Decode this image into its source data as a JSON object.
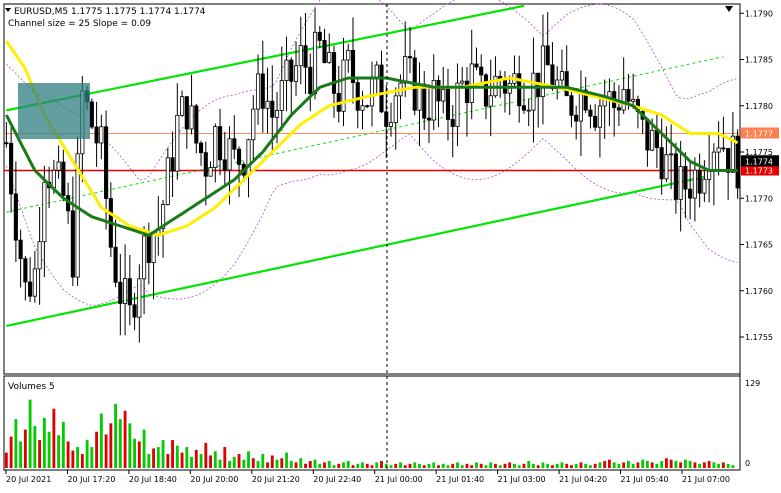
{
  "header": {
    "symbol_line": "EURUSD,M5  1.1775 1.1775 1.1774 1.1774",
    "indicator_line": "Channel size = 25 Slope = 0.09",
    "volume_label": "Volumes 5"
  },
  "colors": {
    "background": "#ffffff",
    "grid_dash": "#000000",
    "channel": "#00e600",
    "ma_fast": "#1a7a1a",
    "ma_slow": "#ffee00",
    "bands": "#b04fd0",
    "hline_red": "#e60000",
    "hline_orange": "#ff8c5a",
    "volume_up": "#00cc00",
    "volume_down": "#dd0000",
    "highlight_box": "#2f7f80",
    "price_tag_red": "#e60000",
    "price_tag_orange": "#ff7f50"
  },
  "chart_data": {
    "type": "candlestick",
    "symbol": "EURUSD",
    "timeframe": "M5",
    "price_axis": {
      "range": [
        1.1751,
        1.1791
      ],
      "ticks": [
        "1.1790",
        "1.1785",
        "1.1780",
        "1.1775",
        "1.1770",
        "1.1765",
        "1.1760",
        "1.1755"
      ]
    },
    "volume_axis": {
      "range": [
        0,
        129
      ],
      "ticks": [
        "129",
        "0"
      ]
    },
    "time_labels": [
      "20 Jul 2021",
      "20 Jul 17:20",
      "20 Jul 18:40",
      "20 Jul 20:00",
      "20 Jul 21:20",
      "20 Jul 22:40",
      "21 Jul 00:00",
      "21 Jul 01:40",
      "21 Jul 03:00",
      "21 Jul 04:20",
      "21 Jul 05:40",
      "21 Jul 07:00"
    ],
    "horizontal_lines": [
      {
        "price": 1.1777,
        "label": "1.1777",
        "color": "orange"
      },
      {
        "price": 1.1773,
        "label": "1.1773",
        "color": "red"
      }
    ],
    "current_price_label": "1.1774",
    "channel": {
      "upper_start": {
        "bar": 0,
        "price": 1.17795
      },
      "upper_end": {
        "bar": 109,
        "price": 1.17908
      },
      "lower_start": {
        "bar": 0,
        "price": 1.17562
      },
      "lower_end": {
        "bar": 147,
        "price": 1.17723
      },
      "mid_start": {
        "bar": 0,
        "price": 1.17685
      },
      "mid_end": {
        "bar": 151,
        "price": 1.17853
      }
    },
    "candles_description": "approx. 150 five-minute bars from 20 Jul 16:00 to 21 Jul 07:00",
    "close_path": [
      [
        0,
        1.1776
      ],
      [
        2,
        1.1768
      ],
      [
        4,
        1.176
      ],
      [
        6,
        1.1762
      ],
      [
        8,
        1.1774
      ],
      [
        10,
        1.1772
      ],
      [
        12,
        1.177
      ],
      [
        14,
        1.1764
      ],
      [
        16,
        1.1781
      ],
      [
        18,
        1.1778
      ],
      [
        20,
        1.1775
      ],
      [
        22,
        1.1765
      ],
      [
        24,
        1.176
      ],
      [
        26,
        1.1757
      ],
      [
        28,
        1.1763
      ],
      [
        30,
        1.1766
      ],
      [
        32,
        1.1767
      ],
      [
        34,
        1.1772
      ],
      [
        36,
        1.1778
      ],
      [
        38,
        1.178
      ],
      [
        40,
        1.1776
      ],
      [
        42,
        1.1774
      ],
      [
        44,
        1.1777
      ],
      [
        46,
        1.1776
      ],
      [
        48,
        1.1774
      ],
      [
        50,
        1.1775
      ],
      [
        52,
        1.178
      ],
      [
        54,
        1.1782
      ],
      [
        56,
        1.1779
      ],
      [
        58,
        1.1781
      ],
      [
        60,
        1.1783
      ],
      [
        62,
        1.1785
      ],
      [
        64,
        1.1784
      ],
      [
        66,
        1.1786
      ],
      [
        68,
        1.1783
      ],
      [
        70,
        1.1781
      ],
      [
        72,
        1.1784
      ],
      [
        74,
        1.1782
      ],
      [
        76,
        1.1781
      ],
      [
        78,
        1.1782
      ],
      [
        80,
        1.178
      ],
      [
        82,
        1.1782
      ],
      [
        84,
        1.1783
      ],
      [
        86,
        1.1782
      ],
      [
        88,
        1.178
      ],
      [
        90,
        1.1781
      ],
      [
        92,
        1.1779
      ],
      [
        94,
        1.178
      ],
      [
        96,
        1.1782
      ],
      [
        98,
        1.1783
      ],
      [
        100,
        1.1781
      ],
      [
        102,
        1.1782
      ],
      [
        104,
        1.1783
      ],
      [
        106,
        1.1782
      ],
      [
        108,
        1.1783
      ],
      [
        110,
        1.1782
      ],
      [
        112,
        1.1783
      ],
      [
        114,
        1.1784
      ],
      [
        116,
        1.1782
      ],
      [
        118,
        1.178
      ],
      [
        120,
        1.1781
      ],
      [
        122,
        1.1782
      ],
      [
        124,
        1.178
      ],
      [
        126,
        1.1781
      ],
      [
        128,
        1.178
      ],
      [
        130,
        1.1782
      ],
      [
        132,
        1.1779
      ],
      [
        134,
        1.1777
      ],
      [
        136,
        1.1776
      ],
      [
        138,
        1.1775
      ],
      [
        140,
        1.1772
      ],
      [
        142,
        1.1771
      ],
      [
        144,
        1.1772
      ],
      [
        146,
        1.1773
      ],
      [
        148,
        1.1776
      ],
      [
        150,
        1.1777
      ],
      [
        152,
        1.1775
      ],
      [
        154,
        1.1774
      ]
    ],
    "ma_fast_path": [
      [
        0,
        1.1779
      ],
      [
        6,
        1.1773
      ],
      [
        12,
        1.177
      ],
      [
        18,
        1.1768
      ],
      [
        24,
        1.1767
      ],
      [
        30,
        1.1766
      ],
      [
        36,
        1.1768
      ],
      [
        42,
        1.177
      ],
      [
        48,
        1.1772
      ],
      [
        54,
        1.1775
      ],
      [
        60,
        1.1779
      ],
      [
        66,
        1.1782
      ],
      [
        72,
        1.1783
      ],
      [
        80,
        1.1783
      ],
      [
        90,
        1.1782
      ],
      [
        100,
        1.1782
      ],
      [
        110,
        1.1782
      ],
      [
        118,
        1.1782
      ],
      [
        126,
        1.1781
      ],
      [
        132,
        1.178
      ],
      [
        138,
        1.1777
      ],
      [
        144,
        1.1774
      ],
      [
        148,
        1.1773
      ],
      [
        154,
        1.1773
      ]
    ],
    "ma_slow_path": [
      [
        0,
        1.1787
      ],
      [
        4,
        1.1784
      ],
      [
        8,
        1.1779
      ],
      [
        14,
        1.1774
      ],
      [
        20,
        1.1769
      ],
      [
        26,
        1.1767
      ],
      [
        32,
        1.1766
      ],
      [
        38,
        1.1767
      ],
      [
        44,
        1.1769
      ],
      [
        50,
        1.1772
      ],
      [
        56,
        1.1775
      ],
      [
        62,
        1.1778
      ],
      [
        68,
        1.178
      ],
      [
        76,
        1.1781
      ],
      [
        86,
        1.1782
      ],
      [
        96,
        1.1782
      ],
      [
        106,
        1.1783
      ],
      [
        116,
        1.1782
      ],
      [
        124,
        1.1781
      ],
      [
        132,
        1.178
      ],
      [
        138,
        1.1779
      ],
      [
        144,
        1.1777
      ],
      [
        150,
        1.1777
      ],
      [
        154,
        1.1776
      ]
    ],
    "volumes": [
      22,
      45,
      70,
      38,
      55,
      98,
      60,
      40,
      72,
      52,
      85,
      47,
      66,
      38,
      25,
      30,
      20,
      40,
      30,
      52,
      78,
      48,
      64,
      92,
      70,
      82,
      64,
      42,
      38,
      55,
      20,
      28,
      30,
      40,
      20,
      40,
      32,
      22,
      30,
      16,
      26,
      20,
      36,
      18,
      24,
      12,
      30,
      10,
      16,
      20,
      12,
      24,
      14,
      10,
      20,
      8,
      18,
      12,
      14,
      22,
      10,
      8,
      14,
      6,
      10,
      12,
      6,
      8,
      10,
      4,
      6,
      8,
      10,
      4,
      6,
      8,
      6,
      4,
      8,
      10,
      6,
      4,
      6,
      8,
      4,
      6,
      8,
      6,
      4,
      6,
      8,
      4,
      6,
      4,
      6,
      8,
      4,
      6,
      4,
      8,
      6,
      4,
      8,
      6,
      4,
      6,
      8,
      6,
      4,
      6,
      10,
      6,
      4,
      8,
      6,
      4,
      6,
      8,
      6,
      4,
      6,
      8,
      6,
      4,
      6,
      8,
      10,
      12,
      8,
      6,
      8,
      10,
      6,
      8,
      12,
      10,
      8,
      6,
      10,
      14,
      12,
      10,
      8,
      12,
      10,
      8,
      6,
      8,
      10,
      8,
      6,
      8,
      6,
      4
    ]
  }
}
